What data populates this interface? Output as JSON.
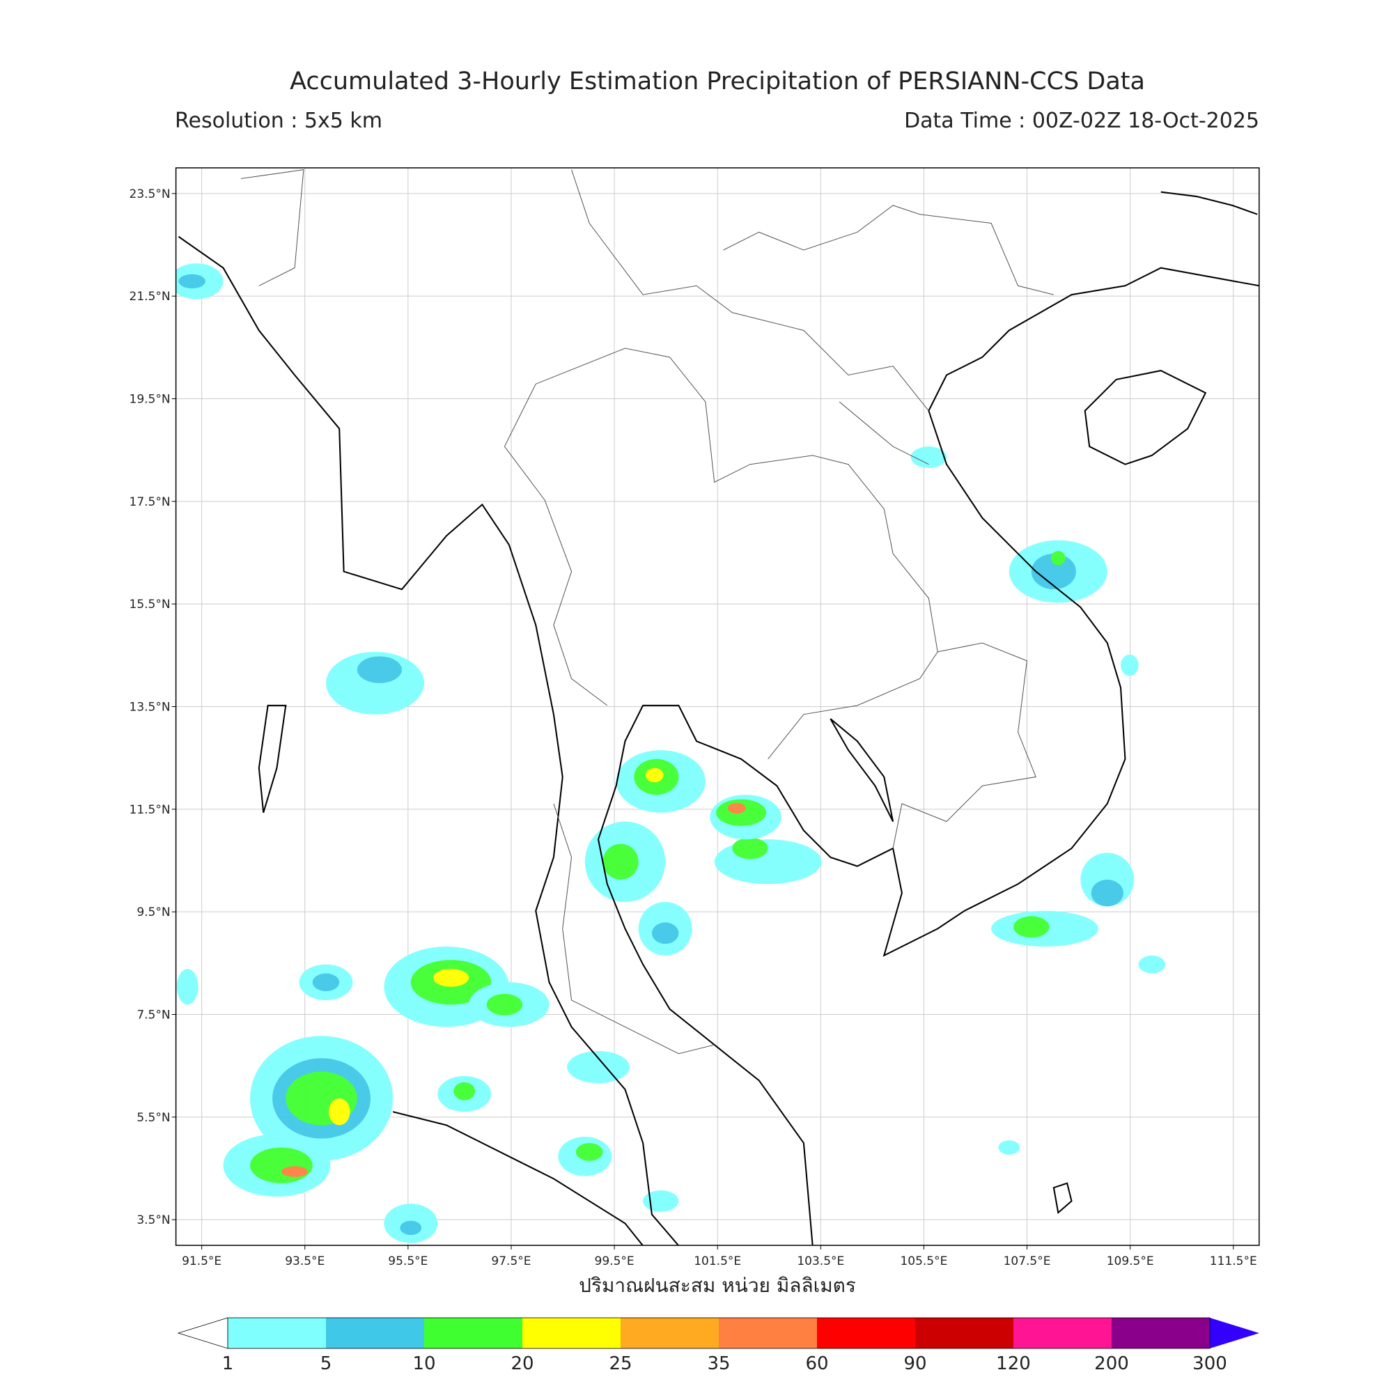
{
  "header": {
    "title": "Accumulated 3-Hourly Estimation Precipitation of PERSIANN-CCS Data",
    "resolution": "Resolution : 5x5 km",
    "data_time": "Data Time : 00Z-02Z 18-Oct-2025"
  },
  "map": {
    "lon_range": [
      91,
      112
    ],
    "lat_range": [
      3,
      24
    ],
    "grid": true,
    "lat_ticks": [
      {
        "value": 23.5,
        "label": "23.5°N"
      },
      {
        "value": 21.5,
        "label": "21.5°N"
      },
      {
        "value": 19.5,
        "label": "19.5°N"
      },
      {
        "value": 17.5,
        "label": "17.5°N"
      },
      {
        "value": 15.5,
        "label": "15.5°N"
      },
      {
        "value": 13.5,
        "label": "13.5°N"
      },
      {
        "value": 11.5,
        "label": "11.5°N"
      },
      {
        "value": 9.5,
        "label": "9.5°N"
      },
      {
        "value": 7.5,
        "label": "7.5°N"
      },
      {
        "value": 5.5,
        "label": "5.5°N"
      },
      {
        "value": 3.5,
        "label": "3.5°N"
      }
    ],
    "lon_ticks": [
      {
        "value": 91.5,
        "label": "91.5°E"
      },
      {
        "value": 93.5,
        "label": "93.5°E"
      },
      {
        "value": 95.5,
        "label": "95.5°E"
      },
      {
        "value": 97.5,
        "label": "97.5°E"
      },
      {
        "value": 99.5,
        "label": "99.5°E"
      },
      {
        "value": 101.5,
        "label": "101.5°E"
      },
      {
        "value": 103.5,
        "label": "103.5°E"
      },
      {
        "value": 105.5,
        "label": "105.5°E"
      },
      {
        "value": 107.5,
        "label": "107.5°E"
      },
      {
        "value": 109.5,
        "label": "109.5°E"
      },
      {
        "value": 111.5,
        "label": "111.5°E"
      }
    ],
    "x_label": "ปริมาณฝนสะสม หน่วย มิลลิเมตร"
  },
  "colorbar": {
    "levels": [
      1,
      5,
      10,
      20,
      25,
      35,
      60,
      90,
      120,
      200,
      300
    ],
    "colors": [
      "#80ffff",
      "#40c8e8",
      "#40ff30",
      "#ffff00",
      "#ffaa20",
      "#ff8040",
      "#ff0000",
      "#cc0000",
      "#ff1493",
      "#8b008b"
    ],
    "under_color": "#ffffff",
    "over_color": "#3300ff"
  }
}
